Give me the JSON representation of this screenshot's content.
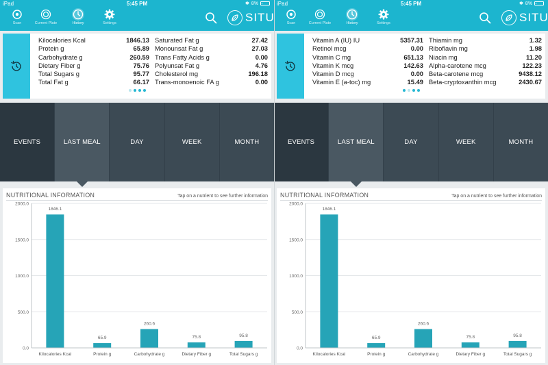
{
  "status": {
    "device": "iPad",
    "time": "5:45 PM",
    "battery": "8%"
  },
  "nav": {
    "tabs": [
      {
        "label": "Scan"
      },
      {
        "label": "Current Plate"
      },
      {
        "label": "History"
      },
      {
        "label": "Settings"
      }
    ],
    "active_tab": "History",
    "brand": "SITU"
  },
  "periods": [
    "EVENTS",
    "LAST MEAL",
    "DAY",
    "WEEK",
    "MONTH"
  ],
  "selected_period": "EVENTS",
  "active_period": "LAST MEAL",
  "screens": [
    {
      "summary": {
        "col1": [
          {
            "label": "Kilocalories Kcal",
            "value": "1846.13"
          },
          {
            "label": "Protein g",
            "value": "65.89"
          },
          {
            "label": "Carbohydrate g",
            "value": "260.59"
          },
          {
            "label": "Dietary Fiber g",
            "value": "75.76"
          },
          {
            "label": "Total Sugars g",
            "value": "95.77"
          },
          {
            "label": "Total Fat g",
            "value": "66.17"
          }
        ],
        "col2": [
          {
            "label": "Saturated Fat g",
            "value": "27.42"
          },
          {
            "label": "Monounsat Fat g",
            "value": "27.03"
          },
          {
            "label": "Trans Fatty Acids g",
            "value": "0.00"
          },
          {
            "label": "Polyunsat Fat g",
            "value": "4.76"
          },
          {
            "label": "Cholesterol mg",
            "value": "196.18"
          },
          {
            "label": "Trans-monoenoic FA g",
            "value": "0.00"
          }
        ],
        "page_dots": 4,
        "current_dot": 0
      }
    },
    {
      "summary": {
        "col1": [
          {
            "label": "Vitamin A (IU) IU",
            "value": "5357.31"
          },
          {
            "label": "Retinol mcg",
            "value": "0.00"
          },
          {
            "label": "Vitamin C mg",
            "value": "651.13"
          },
          {
            "label": "Vitamin K mcg",
            "value": "142.63"
          },
          {
            "label": "Vitamin D mcg",
            "value": "0.00"
          },
          {
            "label": "Vitamin E (a-toc) mg",
            "value": "15.49"
          }
        ],
        "col2": [
          {
            "label": "Thiamin mg",
            "value": "1.32"
          },
          {
            "label": "Riboflavin mg",
            "value": "1.98"
          },
          {
            "label": "Niacin mg",
            "value": "11.20"
          },
          {
            "label": "Alpha-carotene mcg",
            "value": "122.23"
          },
          {
            "label": "Beta-carotene mcg",
            "value": "9438.12"
          },
          {
            "label": "Beta-cryptoxanthin mcg",
            "value": "2430.67"
          }
        ],
        "page_dots": 4,
        "current_dot": 1
      }
    }
  ],
  "panel": {
    "title": "NUTRITIONAL INFORMATION",
    "hint": "Tap on a nutrient to see further information"
  },
  "chart_data": {
    "type": "bar",
    "categories": [
      "Kilocalories Kcal",
      "Protein g",
      "Carbohydrate g",
      "Dietary Fiber g",
      "Total Sugars g"
    ],
    "values": [
      1846.1,
      65.9,
      260.6,
      75.8,
      95.8
    ],
    "value_labels": [
      "1846.1",
      "65.9",
      "260.6",
      "75.8",
      "95.8"
    ],
    "yticks": [
      "0.0",
      "500.0",
      "1000.0",
      "1500.0",
      "2000.0"
    ],
    "ylim": [
      0,
      2000
    ],
    "grid": true,
    "bar_color": "#26a4b7"
  },
  "colors": {
    "brand": "#1cb5cf",
    "tab_bar": "#3c4a54",
    "selected_tab": "#2b3740",
    "active_tab": "#4a5862",
    "accent": "#2fc3df"
  }
}
